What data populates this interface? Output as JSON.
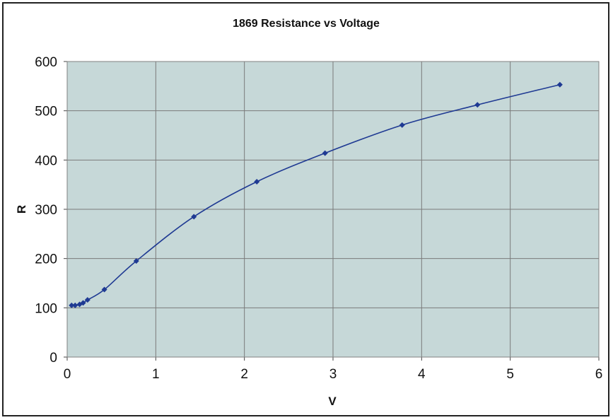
{
  "chart_data": {
    "type": "scatter",
    "title": "1869 Resistance vs Voltage",
    "xlabel": "V",
    "ylabel": "R",
    "xlim": [
      0,
      6
    ],
    "ylim": [
      0,
      600
    ],
    "xticks": [
      "0",
      "1",
      "2",
      "3",
      "4",
      "5",
      "6"
    ],
    "yticks": [
      "0",
      "100",
      "200",
      "300",
      "400",
      "500",
      "600"
    ],
    "grid": true,
    "legend": "none",
    "plot_background": "#c6d8d8",
    "series_color": "#1f3a93",
    "x": [
      0.05,
      0.09,
      0.14,
      0.18,
      0.23,
      0.42,
      0.78,
      1.43,
      2.14,
      2.91,
      3.78,
      4.63,
      5.56
    ],
    "y": [
      105,
      105,
      107,
      110,
      116,
      137,
      195,
      285,
      356,
      414,
      471,
      512,
      553
    ]
  }
}
